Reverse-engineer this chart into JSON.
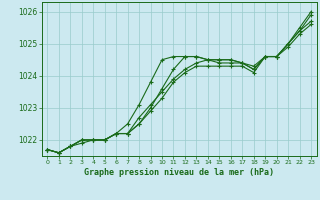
{
  "title": "Graphe pression niveau de la mer (hPa)",
  "background_color": "#cce9f0",
  "grid_color": "#99cccc",
  "line_color": "#1a6b1a",
  "xlim": [
    -0.5,
    23.5
  ],
  "ylim": [
    1021.5,
    1026.3
  ],
  "yticks": [
    1022,
    1023,
    1024,
    1025,
    1026
  ],
  "xticks": [
    0,
    1,
    2,
    3,
    4,
    5,
    6,
    7,
    8,
    9,
    10,
    11,
    12,
    13,
    14,
    15,
    16,
    17,
    18,
    19,
    20,
    21,
    22,
    23
  ],
  "series": [
    [
      1021.7,
      1021.6,
      1021.8,
      1021.9,
      1022.0,
      1022.0,
      1022.2,
      1022.5,
      1023.1,
      1023.8,
      1024.5,
      1024.6,
      1024.6,
      1024.6,
      1024.5,
      1024.5,
      1024.5,
      1024.4,
      1024.2,
      1024.6,
      1024.6,
      1025.0,
      1025.5,
      1026.0
    ],
    [
      1021.7,
      1021.6,
      1021.8,
      1022.0,
      1022.0,
      1022.0,
      1022.2,
      1022.2,
      1022.5,
      1022.9,
      1023.3,
      1023.8,
      1024.1,
      1024.3,
      1024.3,
      1024.3,
      1024.3,
      1024.3,
      1024.1,
      1024.6,
      1024.6,
      1024.9,
      1025.3,
      1025.6
    ],
    [
      1021.7,
      1021.6,
      1021.8,
      1022.0,
      1022.0,
      1022.0,
      1022.2,
      1022.2,
      1022.5,
      1023.0,
      1023.6,
      1024.2,
      1024.6,
      1024.6,
      1024.5,
      1024.4,
      1024.4,
      1024.4,
      1024.3,
      1024.6,
      1024.6,
      1025.0,
      1025.4,
      1025.9
    ],
    [
      1021.7,
      1021.6,
      1021.8,
      1022.0,
      1022.0,
      1022.0,
      1022.2,
      1022.2,
      1022.7,
      1023.1,
      1023.5,
      1023.9,
      1024.2,
      1024.4,
      1024.5,
      1024.5,
      1024.5,
      1024.4,
      1024.2,
      1024.6,
      1024.6,
      1025.0,
      1025.4,
      1025.7
    ]
  ]
}
